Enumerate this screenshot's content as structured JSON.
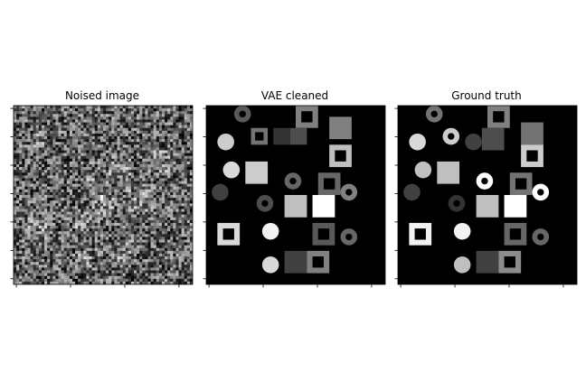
{
  "panels": [
    {
      "title": "Noised image",
      "kind": "noise",
      "shapes": [
        {
          "type": "square",
          "col": 13,
          "row": 13,
          "size": 4,
          "gray": 0.55
        },
        {
          "type": "disk",
          "col": 3,
          "row": 5,
          "size": 3,
          "gray": 0.6
        },
        {
          "type": "square",
          "col": 24,
          "row": 8,
          "size": 4,
          "gray": 0.55
        },
        {
          "type": "ring",
          "col": 17,
          "row": 9,
          "size": 4,
          "gray": 0.6
        },
        {
          "type": "square",
          "col": 20,
          "row": 14,
          "size": 5,
          "gray": 0.6
        },
        {
          "type": "square",
          "col": 2,
          "row": 20,
          "size": 4,
          "gray": 0.55
        },
        {
          "type": "disk",
          "col": 11,
          "row": 19,
          "size": 3,
          "gray": 0.55
        },
        {
          "type": "square",
          "col": 14,
          "row": 16,
          "size": 4,
          "gray": 0.5
        },
        {
          "type": "disk",
          "col": 11,
          "row": 26,
          "size": 3,
          "gray": 0.5
        },
        {
          "type": "square",
          "col": 18,
          "row": 24,
          "size": 4,
          "gray": 0.45
        }
      ]
    },
    {
      "title": "VAE cleaned",
      "kind": "image",
      "shapes": [
        {
          "type": "ring",
          "col": 5,
          "row": 0,
          "size": 3,
          "gray": 0.35,
          "thick": 0.9
        },
        {
          "type": "square-hole",
          "col": 16,
          "row": 0,
          "size": 4,
          "gray": 0.5,
          "hole": 0.2
        },
        {
          "type": "square",
          "col": 22,
          "row": 2,
          "size": 4,
          "gray": 0.5
        },
        {
          "type": "disk",
          "col": 2,
          "row": 5,
          "size": 3,
          "gray": 0.8
        },
        {
          "type": "square-hole",
          "col": 8,
          "row": 4,
          "size": 3,
          "gray": 0.45,
          "hole": 0.2
        },
        {
          "type": "square",
          "col": 12,
          "row": 4,
          "size": 3,
          "gray": 0.2
        },
        {
          "type": "square",
          "col": 15,
          "row": 4,
          "size": 3,
          "gray": 0.3
        },
        {
          "type": "square-hole",
          "col": 22,
          "row": 7,
          "size": 4,
          "gray": 0.75,
          "hole": 0.15
        },
        {
          "type": "disk",
          "col": 3,
          "row": 10,
          "size": 3,
          "gray": 0.85
        },
        {
          "type": "square",
          "col": 7,
          "row": 10,
          "size": 4,
          "gray": 0.8
        },
        {
          "type": "ring",
          "col": 14,
          "row": 12,
          "size": 3,
          "gray": 0.4,
          "thick": 0.9
        },
        {
          "type": "square-hole",
          "col": 20,
          "row": 12,
          "size": 4,
          "gray": 0.4,
          "hole": 0.2
        },
        {
          "type": "ring",
          "col": 24,
          "row": 14,
          "size": 3,
          "gray": 0.5,
          "thick": 0.9
        },
        {
          "type": "disk",
          "col": 1,
          "row": 14,
          "size": 3,
          "gray": 0.25
        },
        {
          "type": "ring",
          "col": 9,
          "row": 16,
          "size": 3,
          "gray": 0.3,
          "thick": 0.9
        },
        {
          "type": "square",
          "col": 14,
          "row": 16,
          "size": 4,
          "gray": 0.75
        },
        {
          "type": "square",
          "col": 19,
          "row": 16,
          "size": 4,
          "gray": 1.0
        },
        {
          "type": "square-hole",
          "col": 2,
          "row": 21,
          "size": 4,
          "gray": 0.85,
          "hole": 0.15
        },
        {
          "type": "disk",
          "col": 10,
          "row": 21,
          "size": 3,
          "gray": 0.95
        },
        {
          "type": "square-hole",
          "col": 19,
          "row": 21,
          "size": 4,
          "gray": 0.35,
          "hole": 0.25
        },
        {
          "type": "ring",
          "col": 24,
          "row": 22,
          "size": 3,
          "gray": 0.4,
          "thick": 0.9
        },
        {
          "type": "disk",
          "col": 10,
          "row": 27,
          "size": 3,
          "gray": 0.85
        },
        {
          "type": "square",
          "col": 14,
          "row": 26,
          "size": 4,
          "gray": 0.25
        },
        {
          "type": "square-hole",
          "col": 18,
          "row": 26,
          "size": 4,
          "gray": 0.5,
          "hole": 0.2
        }
      ]
    },
    {
      "title": "Ground truth",
      "kind": "image",
      "shapes": [
        {
          "type": "ring",
          "col": 5,
          "row": 0,
          "size": 3,
          "gray": 0.45,
          "thick": 0.9
        },
        {
          "type": "square-hole",
          "col": 16,
          "row": 0,
          "size": 4,
          "gray": 0.5,
          "hole": 0.2
        },
        {
          "type": "square",
          "col": 22,
          "row": 3,
          "size": 4,
          "gray": 0.45
        },
        {
          "type": "disk",
          "col": 2,
          "row": 5,
          "size": 3,
          "gray": 0.85
        },
        {
          "type": "ring",
          "col": 8,
          "row": 4,
          "size": 3,
          "gray": 0.8,
          "thick": 0.9
        },
        {
          "type": "disk",
          "col": 12,
          "row": 5,
          "size": 3,
          "gray": 0.25
        },
        {
          "type": "square",
          "col": 15,
          "row": 4,
          "size": 4,
          "gray": 0.3
        },
        {
          "type": "square-hole",
          "col": 22,
          "row": 7,
          "size": 4,
          "gray": 0.8,
          "hole": 0.15
        },
        {
          "type": "disk",
          "col": 3,
          "row": 10,
          "size": 3,
          "gray": 0.75
        },
        {
          "type": "square",
          "col": 7,
          "row": 10,
          "size": 4,
          "gray": 0.75
        },
        {
          "type": "ring",
          "col": 14,
          "row": 12,
          "size": 3,
          "gray": 1.0,
          "thick": 0.9
        },
        {
          "type": "square-hole",
          "col": 20,
          "row": 12,
          "size": 4,
          "gray": 0.45,
          "hole": 0.2
        },
        {
          "type": "ring",
          "col": 24,
          "row": 14,
          "size": 3,
          "gray": 1.0,
          "thick": 0.9
        },
        {
          "type": "disk",
          "col": 1,
          "row": 14,
          "size": 3,
          "gray": 0.25
        },
        {
          "type": "ring",
          "col": 9,
          "row": 16,
          "size": 3,
          "gray": 0.2,
          "thick": 0.9
        },
        {
          "type": "square",
          "col": 14,
          "row": 16,
          "size": 4,
          "gray": 0.75
        },
        {
          "type": "square",
          "col": 19,
          "row": 16,
          "size": 4,
          "gray": 1.0
        },
        {
          "type": "square-hole",
          "col": 2,
          "row": 21,
          "size": 4,
          "gray": 0.95,
          "hole": 0.15
        },
        {
          "type": "disk",
          "col": 10,
          "row": 21,
          "size": 3,
          "gray": 0.95
        },
        {
          "type": "square-hole",
          "col": 19,
          "row": 21,
          "size": 4,
          "gray": 0.4,
          "hole": 0.25
        },
        {
          "type": "ring",
          "col": 24,
          "row": 22,
          "size": 3,
          "gray": 0.4,
          "thick": 0.9
        },
        {
          "type": "disk",
          "col": 10,
          "row": 27,
          "size": 3,
          "gray": 0.75
        },
        {
          "type": "square",
          "col": 14,
          "row": 26,
          "size": 4,
          "gray": 0.25
        },
        {
          "type": "square-hole",
          "col": 18,
          "row": 26,
          "size": 4,
          "gray": 0.55,
          "hole": 0.2
        }
      ]
    }
  ]
}
